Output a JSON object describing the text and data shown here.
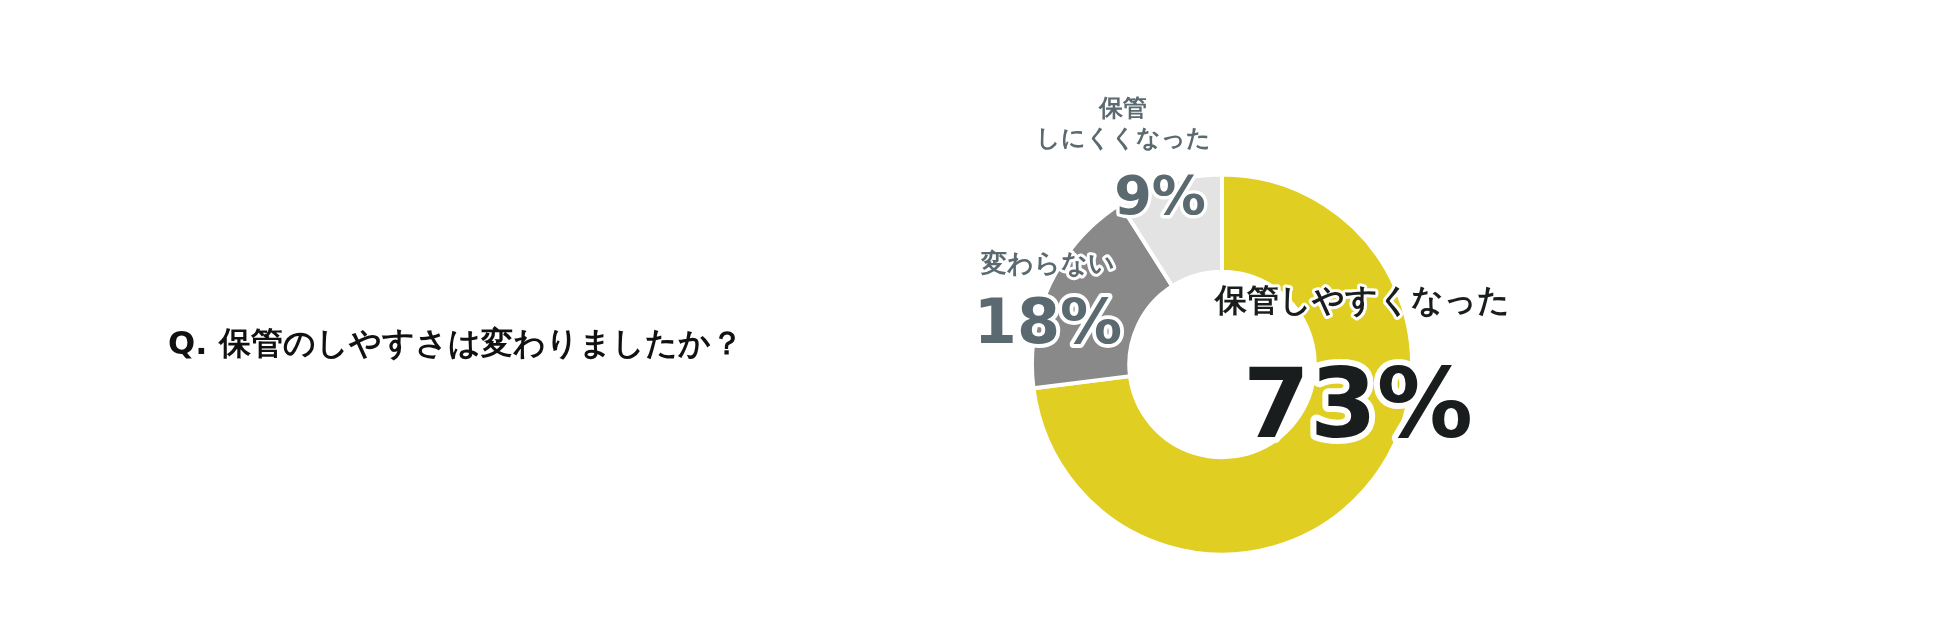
{
  "chart_data": {
    "type": "donut",
    "title": "Q. 保管のしやすさは変わりましたか？",
    "categories": [
      "保管しやすくなった",
      "変わらない",
      "保管しにくくなった"
    ],
    "values": [
      73,
      18,
      9
    ],
    "colors": [
      "#e0cf22",
      "#898989",
      "#e3e3e3"
    ],
    "value_labels": [
      "73%",
      "18%",
      "9%"
    ],
    "legend": false
  }
}
